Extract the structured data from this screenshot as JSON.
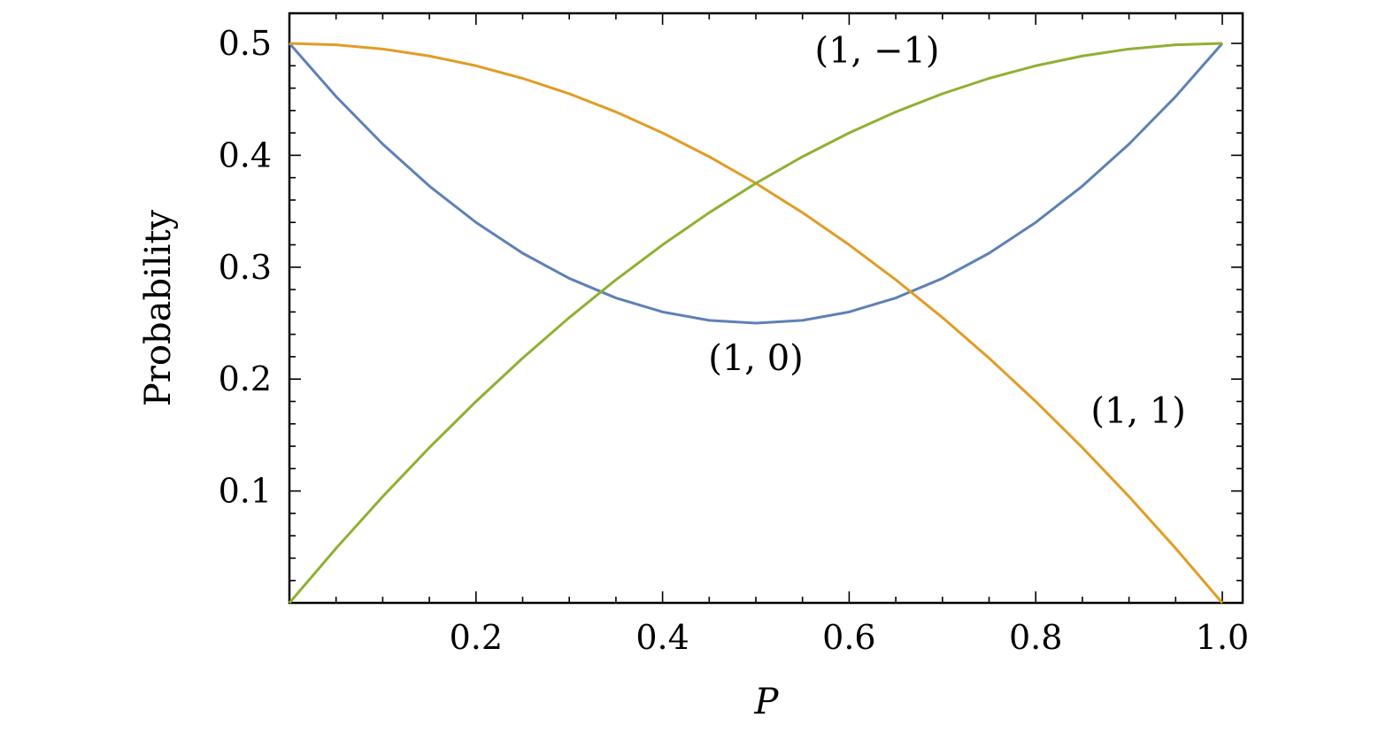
{
  "chart_data": {
    "type": "line",
    "title": "",
    "xlabel": "P",
    "ylabel": "Probability",
    "xlim": [
      0,
      1.0
    ],
    "ylim": [
      0,
      0.5
    ],
    "grid": false,
    "x_ticks": [
      {
        "value": 0.2,
        "label": "0.2"
      },
      {
        "value": 0.4,
        "label": "0.4"
      },
      {
        "value": 0.6,
        "label": "0.6"
      },
      {
        "value": 0.8,
        "label": "0.8"
      },
      {
        "value": 1.0,
        "label": "1.0"
      }
    ],
    "y_ticks": [
      {
        "value": 0.1,
        "label": "0.1"
      },
      {
        "value": 0.2,
        "label": "0.2"
      },
      {
        "value": 0.3,
        "label": "0.3"
      },
      {
        "value": 0.4,
        "label": "0.4"
      },
      {
        "value": 0.5,
        "label": "0.5"
      }
    ],
    "x": [
      0,
      0.05,
      0.1,
      0.15,
      0.2,
      0.25,
      0.3,
      0.35,
      0.4,
      0.45,
      0.5,
      0.55,
      0.6,
      0.65,
      0.7,
      0.75,
      0.8,
      0.85,
      0.9,
      0.95,
      1.0
    ],
    "series": [
      {
        "name": "(1, 0)",
        "color": "#5e81b5",
        "values": [
          0.5,
          0.4525,
          0.41,
          0.3725,
          0.34,
          0.3125,
          0.29,
          0.2725,
          0.26,
          0.2525,
          0.25,
          0.2525,
          0.26,
          0.2725,
          0.29,
          0.3125,
          0.34,
          0.3725,
          0.41,
          0.4525,
          0.5
        ]
      },
      {
        "name": "(1, 1)",
        "color": "#e19c24",
        "values": [
          0.5,
          0.49875,
          0.495,
          0.48875,
          0.48,
          0.46875,
          0.455,
          0.43875,
          0.42,
          0.39875,
          0.375,
          0.34875,
          0.32,
          0.28875,
          0.255,
          0.21875,
          0.18,
          0.13875,
          0.095,
          0.04875,
          0.0
        ]
      },
      {
        "name": "(1, −1)",
        "color": "#8fb032",
        "values": [
          0.0,
          0.04875,
          0.095,
          0.13875,
          0.18,
          0.21875,
          0.255,
          0.28875,
          0.32,
          0.34875,
          0.375,
          0.39875,
          0.42,
          0.43875,
          0.455,
          0.46875,
          0.48,
          0.48875,
          0.495,
          0.49875,
          0.5
        ]
      }
    ],
    "annotations": [
      {
        "text": "(1, −1)",
        "x": 0.63,
        "y": 0.483
      },
      {
        "text": "(1, 0)",
        "x": 0.5,
        "y": 0.208
      },
      {
        "text": "(1, 1)",
        "x": 0.91,
        "y": 0.161
      }
    ]
  }
}
